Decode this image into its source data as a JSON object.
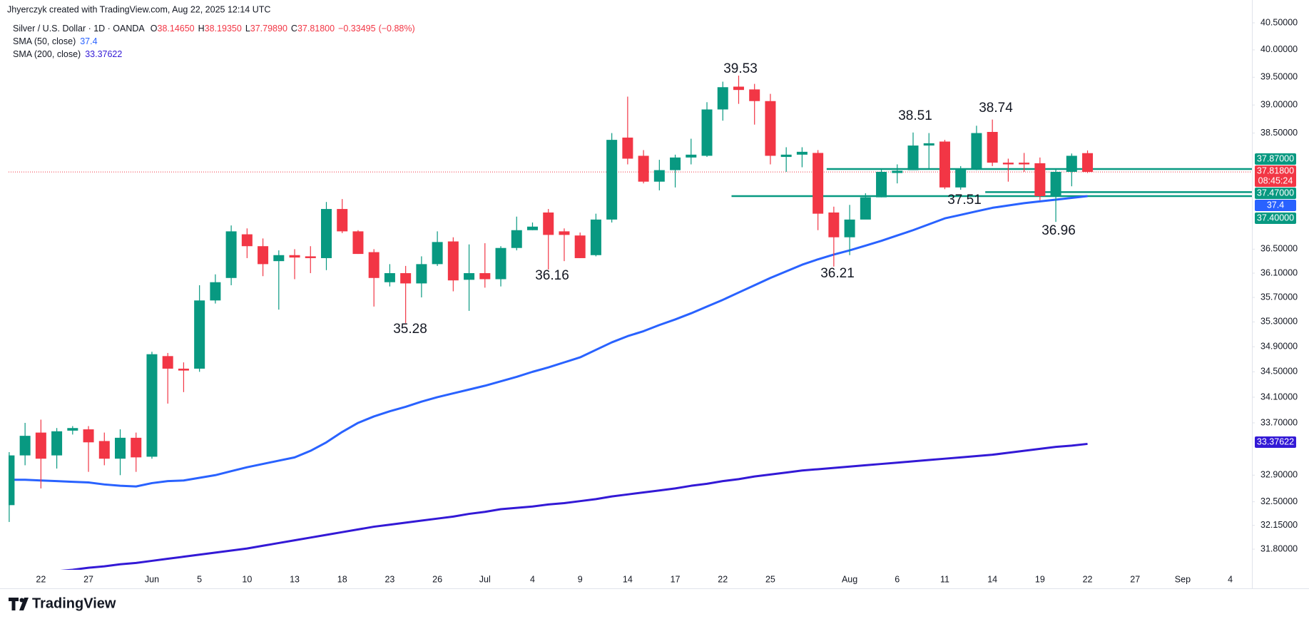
{
  "chart_data": {
    "type": "candlestick",
    "credit": "Jhyerczyk created with TradingView.com, Aug 22, 2025 12:14 UTC",
    "title": "Silver / U.S. Dollar · 1D · OANDA",
    "legend_ohlc": [
      {
        "key": "O",
        "value": 38.1465,
        "label": "38.14650"
      },
      {
        "key": "H",
        "value": 38.1935,
        "label": "38.19350"
      },
      {
        "key": "L",
        "value": 37.7989,
        "label": "37.79890"
      },
      {
        "key": "C",
        "value": 37.818,
        "label": "37.81800"
      }
    ],
    "change": {
      "value": -0.33495,
      "label": "−0.33495"
    },
    "change_pct": {
      "value": -0.88,
      "label": "(−0.88%)"
    },
    "logo": "TradingView",
    "countdown": "08:45:24",
    "up_color": "#089981",
    "down_color": "#f23645",
    "log_scale": true,
    "ylim": [
      31.5,
      40.7
    ],
    "yticks": [
      {
        "value": 31.8,
        "label": "31.80000"
      },
      {
        "value": 32.15,
        "label": "32.15000"
      },
      {
        "value": 32.5,
        "label": "32.50000"
      },
      {
        "value": 32.9,
        "label": "32.90000"
      },
      {
        "value": 33.7,
        "label": "33.70000"
      },
      {
        "value": 34.1,
        "label": "34.10000"
      },
      {
        "value": 34.5,
        "label": "34.50000"
      },
      {
        "value": 34.9,
        "label": "34.90000"
      },
      {
        "value": 35.3,
        "label": "35.30000"
      },
      {
        "value": 35.7,
        "label": "35.70000"
      },
      {
        "value": 36.1,
        "label": "36.10000"
      },
      {
        "value": 36.5,
        "label": "36.50000"
      },
      {
        "value": 38.5,
        "label": "38.50000"
      },
      {
        "value": 39,
        "label": "39.00000"
      },
      {
        "value": 39.5,
        "label": "39.50000"
      },
      {
        "value": 40,
        "label": "40.00000"
      },
      {
        "value": 40.5,
        "label": "40.50000"
      }
    ],
    "categories": [
      null,
      null,
      "22",
      null,
      null,
      "27",
      null,
      null,
      null,
      "Jun",
      null,
      null,
      "5",
      null,
      null,
      "10",
      null,
      null,
      "13",
      null,
      null,
      "18",
      null,
      null,
      "23",
      null,
      null,
      "26",
      null,
      null,
      "Jul",
      null,
      null,
      "4",
      null,
      null,
      "9",
      null,
      null,
      "14",
      null,
      null,
      "17",
      null,
      null,
      "22",
      null,
      null,
      "25",
      null,
      null,
      null,
      null,
      "Aug",
      null,
      null,
      "6",
      null,
      null,
      "11",
      null,
      null,
      "14",
      null,
      null,
      "19",
      null,
      null,
      "22",
      null,
      null,
      "27",
      null,
      null,
      "Sep",
      null,
      null,
      "4"
    ],
    "open": [
      32.45,
      33.2,
      33.55,
      33.2,
      33.58,
      33.6,
      33.42,
      33.15,
      33.47,
      33.18,
      34.75,
      34.55,
      34.55,
      35.65,
      36.02,
      36.75,
      36.55,
      36.3,
      36.4,
      36.38,
      36.35,
      37.18,
      36.8,
      36.45,
      35.95,
      36.1,
      35.93,
      36.25,
      36.63,
      35.99,
      36.1,
      36.0,
      36.52,
      36.82,
      37.12,
      36.8,
      36.73,
      36.4,
      37.0,
      38.42,
      38.1,
      37.65,
      37.85,
      38.07,
      38.1,
      38.92,
      39.33,
      39.28,
      39.07,
      38.08,
      38.12,
      38.15,
      37.12,
      36.7,
      37.0,
      37.38,
      37.8,
      37.85,
      38.28,
      38.35,
      37.55,
      37.88,
      38.52,
      37.98,
      37.98,
      37.97,
      37.4,
      37.82,
      38.1465,
      null,
      null,
      null,
      null,
      null,
      null,
      null,
      null,
      null
    ],
    "high": [
      33.25,
      33.7,
      33.75,
      33.62,
      33.65,
      33.65,
      33.55,
      33.6,
      33.55,
      34.82,
      34.8,
      34.65,
      35.9,
      36.08,
      36.9,
      36.85,
      36.68,
      36.48,
      36.5,
      36.55,
      37.3,
      37.35,
      36.82,
      36.5,
      36.25,
      36.22,
      36.38,
      36.8,
      36.7,
      36.58,
      36.6,
      36.55,
      37.05,
      36.95,
      37.18,
      36.85,
      36.78,
      37.1,
      38.5,
      39.15,
      38.2,
      38.03,
      38.12,
      38.4,
      39.05,
      39.42,
      39.53,
      39.38,
      39.2,
      38.25,
      38.25,
      38.2,
      37.22,
      37.25,
      37.45,
      37.88,
      37.95,
      38.51,
      38.5,
      38.38,
      37.92,
      38.63,
      38.74,
      38.05,
      38.15,
      38.07,
      37.88,
      38.14,
      38.1935,
      null,
      null,
      null,
      null,
      null,
      null,
      null,
      null,
      null
    ],
    "low": [
      32.2,
      33.05,
      32.7,
      33.0,
      33.52,
      32.95,
      33.05,
      32.9,
      32.95,
      33.15,
      34.0,
      34.18,
      34.5,
      35.6,
      35.9,
      36.35,
      36.05,
      35.5,
      36.0,
      36.1,
      36.15,
      36.77,
      36.42,
      35.55,
      35.88,
      35.28,
      35.7,
      36.22,
      35.8,
      35.48,
      35.86,
      35.88,
      36.48,
      36.82,
      36.16,
      36.3,
      36.35,
      36.38,
      36.95,
      37.95,
      37.62,
      37.5,
      37.55,
      37.95,
      38.08,
      38.72,
      39.02,
      38.65,
      37.95,
      37.82,
      37.9,
      36.82,
      36.21,
      36.4,
      37.08,
      37.38,
      37.62,
      37.85,
      37.88,
      37.52,
      37.51,
      37.85,
      37.92,
      37.65,
      37.82,
      37.33,
      36.96,
      37.57,
      37.7989,
      null,
      null,
      null,
      null,
      null,
      null,
      null,
      null,
      null
    ],
    "close": [
      33.2,
      33.5,
      33.15,
      33.57,
      33.62,
      33.4,
      33.15,
      33.47,
      33.17,
      34.78,
      34.55,
      34.52,
      35.65,
      35.95,
      36.8,
      36.55,
      36.25,
      36.4,
      36.36,
      36.35,
      37.18,
      36.8,
      36.42,
      36.02,
      36.1,
      35.93,
      36.25,
      36.62,
      35.98,
      36.1,
      36.0,
      36.52,
      36.82,
      36.88,
      36.74,
      36.74,
      36.35,
      37.0,
      38.38,
      38.05,
      37.65,
      37.85,
      38.07,
      38.12,
      38.92,
      39.32,
      39.27,
      39.07,
      38.1,
      38.12,
      38.17,
      37.1,
      36.7,
      37.0,
      37.38,
      37.82,
      37.84,
      38.28,
      38.32,
      37.55,
      37.88,
      38.5,
      37.98,
      37.95,
      37.95,
      37.4,
      37.82,
      38.1,
      37.818,
      null,
      null,
      null,
      null,
      null,
      null,
      null,
      null,
      null
    ],
    "last_price": {
      "value": 37.818,
      "label": "37.81800"
    },
    "series": [
      {
        "name": "SMA (50, close)",
        "color": "#2962ff",
        "values": [
          32.83,
          32.83,
          32.82,
          32.81,
          32.8,
          32.79,
          32.76,
          32.74,
          32.73,
          32.78,
          32.81,
          32.82,
          32.86,
          32.9,
          32.96,
          33.02,
          33.07,
          33.12,
          33.17,
          33.27,
          33.4,
          33.56,
          33.7,
          33.8,
          33.88,
          33.95,
          34.03,
          34.1,
          34.16,
          34.22,
          34.28,
          34.35,
          34.42,
          34.5,
          34.57,
          34.65,
          34.73,
          34.85,
          34.97,
          35.07,
          35.15,
          35.25,
          35.34,
          35.44,
          35.55,
          35.66,
          35.78,
          35.9,
          36.02,
          36.13,
          36.24,
          36.33,
          36.41,
          36.48,
          36.56,
          36.64,
          36.73,
          36.82,
          36.92,
          37.02,
          37.08,
          37.14,
          37.2,
          37.24,
          37.28,
          37.31,
          37.34,
          37.37,
          37.4,
          null,
          null,
          null,
          null,
          null,
          null,
          null,
          null,
          null
        ]
      },
      {
        "name": "SMA (200, close)",
        "color": "#3319d6",
        "values": [
          null,
          null,
          null,
          31.48,
          31.5,
          31.53,
          31.55,
          31.58,
          31.6,
          31.63,
          31.66,
          31.69,
          31.72,
          31.75,
          31.78,
          31.81,
          31.85,
          31.89,
          31.93,
          31.97,
          32.01,
          32.05,
          32.09,
          32.13,
          32.16,
          32.19,
          32.22,
          32.25,
          32.28,
          32.32,
          32.35,
          32.39,
          32.41,
          32.43,
          32.46,
          32.48,
          32.51,
          32.54,
          32.58,
          32.61,
          32.64,
          32.67,
          32.7,
          32.74,
          32.77,
          32.81,
          32.84,
          32.88,
          32.91,
          32.94,
          32.97,
          32.99,
          33.01,
          33.03,
          33.05,
          33.07,
          33.09,
          33.11,
          33.13,
          33.15,
          33.17,
          33.19,
          33.21,
          33.24,
          33.27,
          33.3,
          33.33,
          33.35,
          33.37622,
          null,
          null,
          null,
          null,
          null,
          null,
          null,
          null,
          null
        ]
      }
    ],
    "levels": [
      {
        "value": 37.87,
        "label": "37.87000"
      },
      {
        "value": 37.47,
        "label": "37.47000"
      },
      {
        "value": 37.4,
        "label": "37.40000"
      }
    ],
    "level_color": "#089981",
    "annotations": [
      "39.53",
      "38.51",
      "38.74",
      "37.51",
      "36.96",
      "36.21",
      "36.16",
      "35.28"
    ]
  }
}
